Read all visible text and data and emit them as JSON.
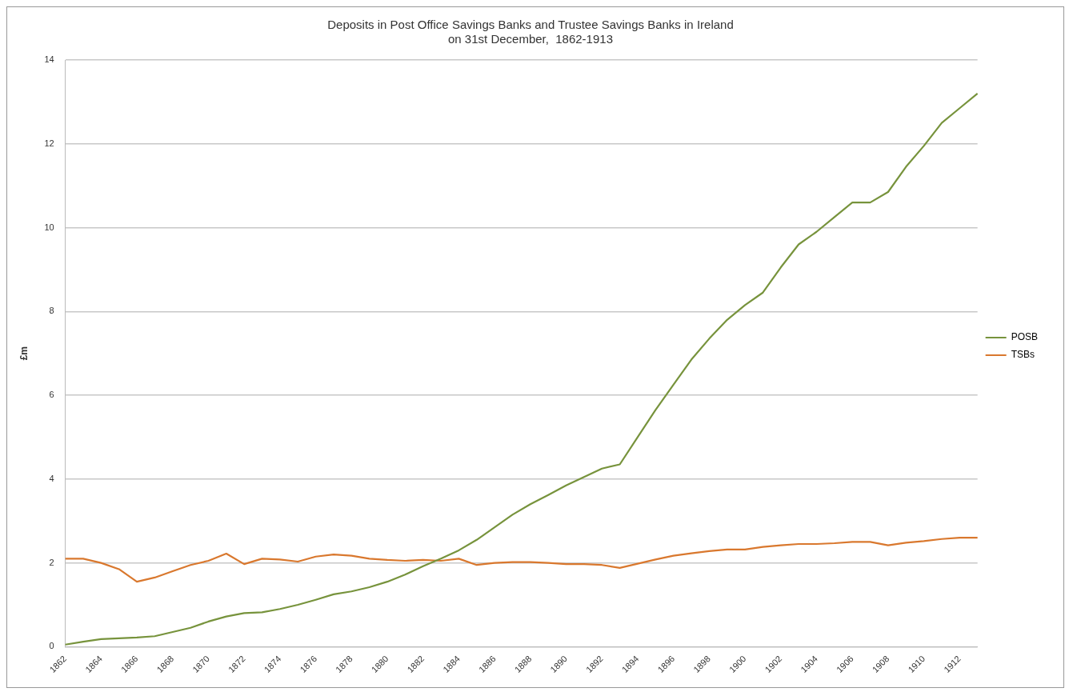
{
  "chart_data": {
    "type": "line",
    "title": "Deposits in Post Office Savings Banks and Trustee Savings Banks in Ireland\non 31st December,  1862-1913",
    "ylabel": "£m",
    "categories": [
      "1862",
      null,
      "1864",
      null,
      "1866",
      null,
      "1868",
      null,
      "1870",
      null,
      "1872",
      null,
      "1874",
      null,
      "1876",
      null,
      "1878",
      null,
      "1880",
      null,
      "1882",
      null,
      "1884",
      null,
      "1886",
      null,
      "1888",
      null,
      "1890",
      null,
      "1892",
      null,
      "1894",
      null,
      "1896",
      null,
      "1898",
      null,
      "1900",
      null,
      "1902",
      null,
      "1904",
      null,
      "1906",
      null,
      "1908",
      null,
      "1910",
      null,
      "1912",
      null
    ],
    "series": [
      {
        "name": "POSB",
        "color": "#77933c",
        "values": [
          0.05,
          0.12,
          0.18,
          0.2,
          0.22,
          0.25,
          0.35,
          0.45,
          0.6,
          0.72,
          0.8,
          0.82,
          0.9,
          1.0,
          1.12,
          1.25,
          1.32,
          1.42,
          1.55,
          1.72,
          1.92,
          2.1,
          2.3,
          2.55,
          2.85,
          3.15,
          3.4,
          3.62,
          3.85,
          4.05,
          4.25,
          4.35,
          5.0,
          5.65,
          6.25,
          6.85,
          7.35,
          7.8,
          8.15,
          8.45,
          9.05,
          9.6,
          9.9,
          10.25,
          10.6,
          10.6,
          10.85,
          11.45,
          11.95,
          12.5,
          12.85,
          13.2
        ]
      },
      {
        "name": "TSBs",
        "color": "#d9782e",
        "values": [
          2.1,
          2.1,
          2.0,
          1.85,
          1.55,
          1.65,
          1.8,
          1.95,
          2.05,
          2.22,
          1.97,
          2.1,
          2.08,
          2.03,
          2.15,
          2.2,
          2.17,
          2.1,
          2.07,
          2.05,
          2.07,
          2.05,
          2.1,
          1.95,
          2.0,
          2.02,
          2.02,
          2.0,
          1.97,
          1.97,
          1.95,
          1.88,
          1.98,
          2.08,
          2.17,
          2.23,
          2.28,
          2.32,
          2.32,
          2.38,
          2.42,
          2.45,
          2.45,
          2.47,
          2.5,
          2.5,
          2.42,
          2.48,
          2.52,
          2.57,
          2.6,
          2.6
        ]
      }
    ],
    "ylim": [
      0,
      14
    ],
    "yticks": [
      0,
      2,
      4,
      6,
      8,
      10,
      12,
      14
    ],
    "grid": "y",
    "legend": "right",
    "marker": "none",
    "line_style": "solid"
  }
}
